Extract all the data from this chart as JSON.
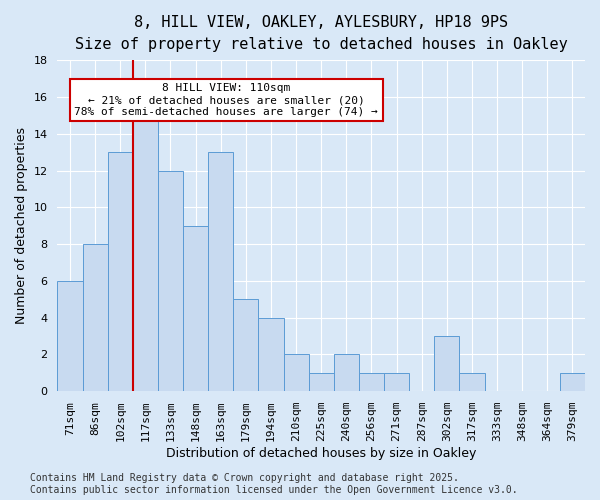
{
  "title": "8, HILL VIEW, OAKLEY, AYLESBURY, HP18 9PS",
  "subtitle": "Size of property relative to detached houses in Oakley",
  "xlabel": "Distribution of detached houses by size in Oakley",
  "ylabel": "Number of detached properties",
  "categories": [
    "71sqm",
    "86sqm",
    "102sqm",
    "117sqm",
    "133sqm",
    "148sqm",
    "163sqm",
    "179sqm",
    "194sqm",
    "210sqm",
    "225sqm",
    "240sqm",
    "256sqm",
    "271sqm",
    "287sqm",
    "302sqm",
    "317sqm",
    "333sqm",
    "348sqm",
    "364sqm",
    "379sqm"
  ],
  "values": [
    6,
    8,
    13,
    15,
    12,
    9,
    13,
    5,
    4,
    2,
    1,
    2,
    1,
    1,
    0,
    3,
    1,
    0,
    0,
    0,
    1
  ],
  "bar_color": "#c8daf0",
  "bar_edge_color": "#5b9bd5",
  "bar_width": 1.0,
  "ylim": [
    0,
    18
  ],
  "yticks": [
    0,
    2,
    4,
    6,
    8,
    10,
    12,
    14,
    16,
    18
  ],
  "vline_x": 2.5,
  "vline_color": "#cc0000",
  "annotation_line1": "8 HILL VIEW: 110sqm",
  "annotation_line2": "← 21% of detached houses are smaller (20)",
  "annotation_line3": "78% of semi-detached houses are larger (74) →",
  "annotation_box_color": "#ffffff",
  "annotation_box_edge": "#cc0000",
  "bg_color": "#d9e8f7",
  "grid_color": "#ffffff",
  "footer": "Contains HM Land Registry data © Crown copyright and database right 2025.\nContains public sector information licensed under the Open Government Licence v3.0.",
  "title_fontsize": 11,
  "subtitle_fontsize": 10,
  "axis_label_fontsize": 9,
  "tick_fontsize": 8,
  "annotation_fontsize": 8,
  "footer_fontsize": 7
}
